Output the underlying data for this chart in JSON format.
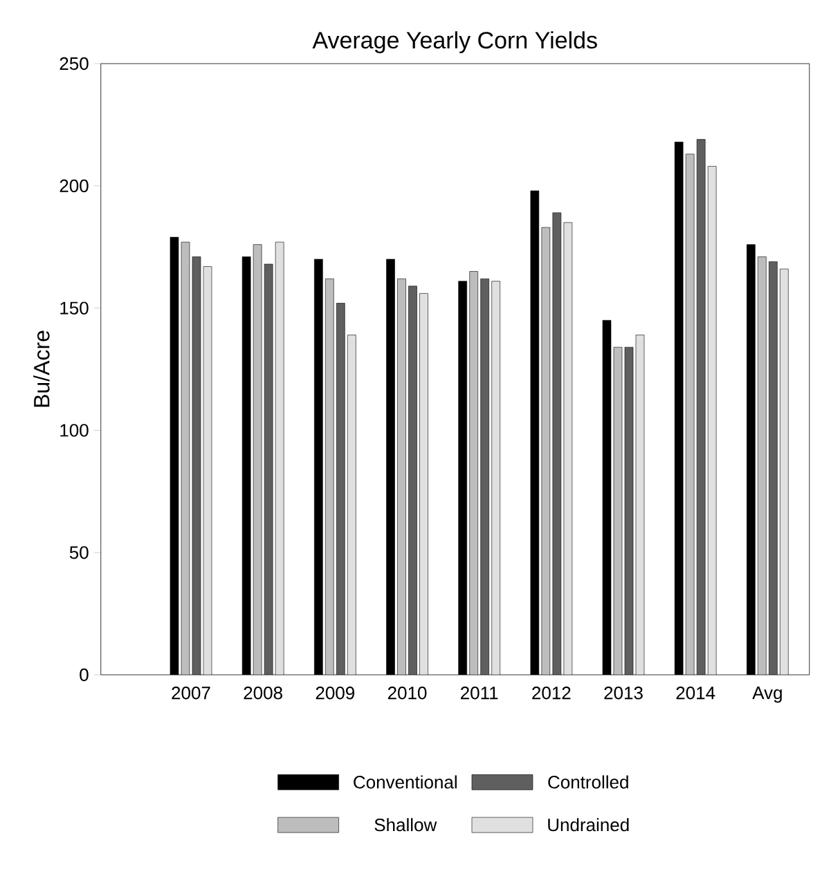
{
  "chart_data": {
    "type": "bar",
    "title": "Average Yearly Corn Yields",
    "ylabel": "Bu/Acre",
    "categories": [
      "2007",
      "2008",
      "2009",
      "2010",
      "2011",
      "2012",
      "2013",
      "2014",
      "Avg"
    ],
    "series": [
      {
        "name": "Conventional",
        "color": "#000000",
        "values": [
          179,
          171,
          170,
          170,
          161,
          198,
          145,
          218,
          176
        ]
      },
      {
        "name": "Shallow",
        "color": "#bdbdbd",
        "values": [
          177,
          176,
          162,
          162,
          165,
          183,
          134,
          213,
          171
        ]
      },
      {
        "name": "Controlled",
        "color": "#5f5f5f",
        "values": [
          171,
          168,
          152,
          159,
          162,
          189,
          134,
          219,
          169
        ]
      },
      {
        "name": "Undrained",
        "color": "#e0e0e0",
        "values": [
          167,
          177,
          139,
          156,
          161,
          185,
          139,
          208,
          166
        ]
      }
    ],
    "ylim": [
      0,
      250
    ],
    "yticks": [
      0,
      50,
      100,
      150,
      200,
      250
    ],
    "legend": "bottom",
    "grid": false
  }
}
